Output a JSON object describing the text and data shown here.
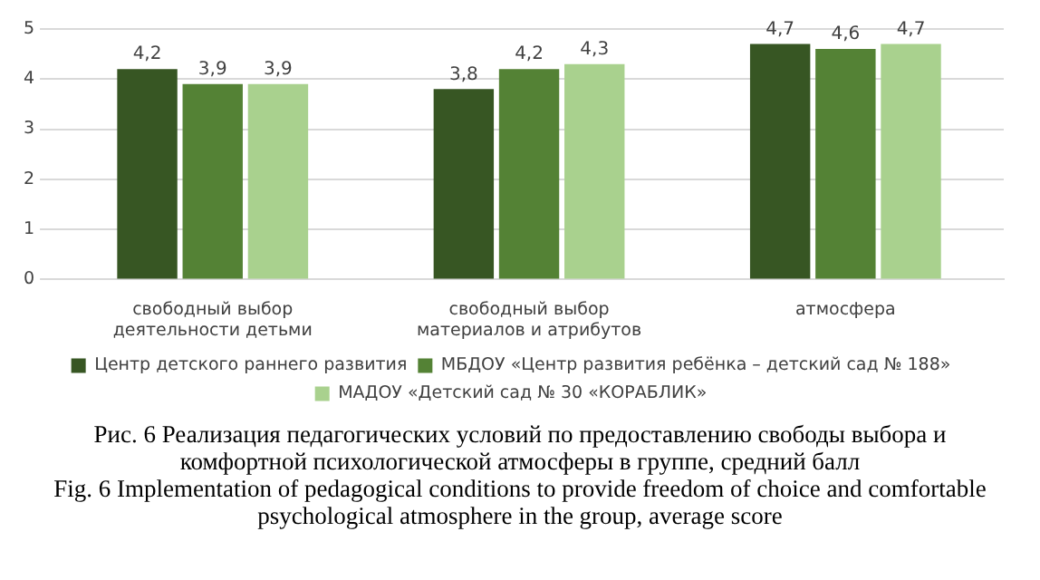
{
  "chart_data": {
    "type": "bar",
    "title": "Рис. 6 Реализация педагогических условий по предоставлению свободы выбора и комфортной психологической атмосферы в группе, средний балл",
    "annotations": [
      "Fig. 6 Implementation of pedagogical conditions to provide freedom of choice and comfortable psychological atmosphere in the group, average score"
    ],
    "categories": [
      "свободный выбор деятельности детьми",
      "свободный выбор материалов и атрибутов",
      "атмосфера"
    ],
    "series": [
      {
        "name": "Центр детского раннего развития",
        "color": "#375623",
        "values": [
          4.2,
          3.8,
          4.7
        ],
        "value_labels": [
          "4,2",
          "3,8",
          "4,7"
        ]
      },
      {
        "name": "МБДОУ «Центр развития ребёнка – детский сад № 188»",
        "color": "#548235",
        "values": [
          3.9,
          4.2,
          4.6
        ],
        "value_labels": [
          "3,9",
          "4,2",
          "4,6"
        ]
      },
      {
        "name": "МАДОУ «Детский сад № 30 «КОРАБЛИК»",
        "color": "#a9d18e",
        "values": [
          3.9,
          4.3,
          4.7
        ],
        "value_labels": [
          "3,9",
          "4,3",
          "4,7"
        ]
      }
    ],
    "ylim": [
      0,
      5
    ],
    "yticks": [
      0,
      1,
      2,
      3,
      4,
      5
    ],
    "grid": "y",
    "legend": "bottom"
  }
}
